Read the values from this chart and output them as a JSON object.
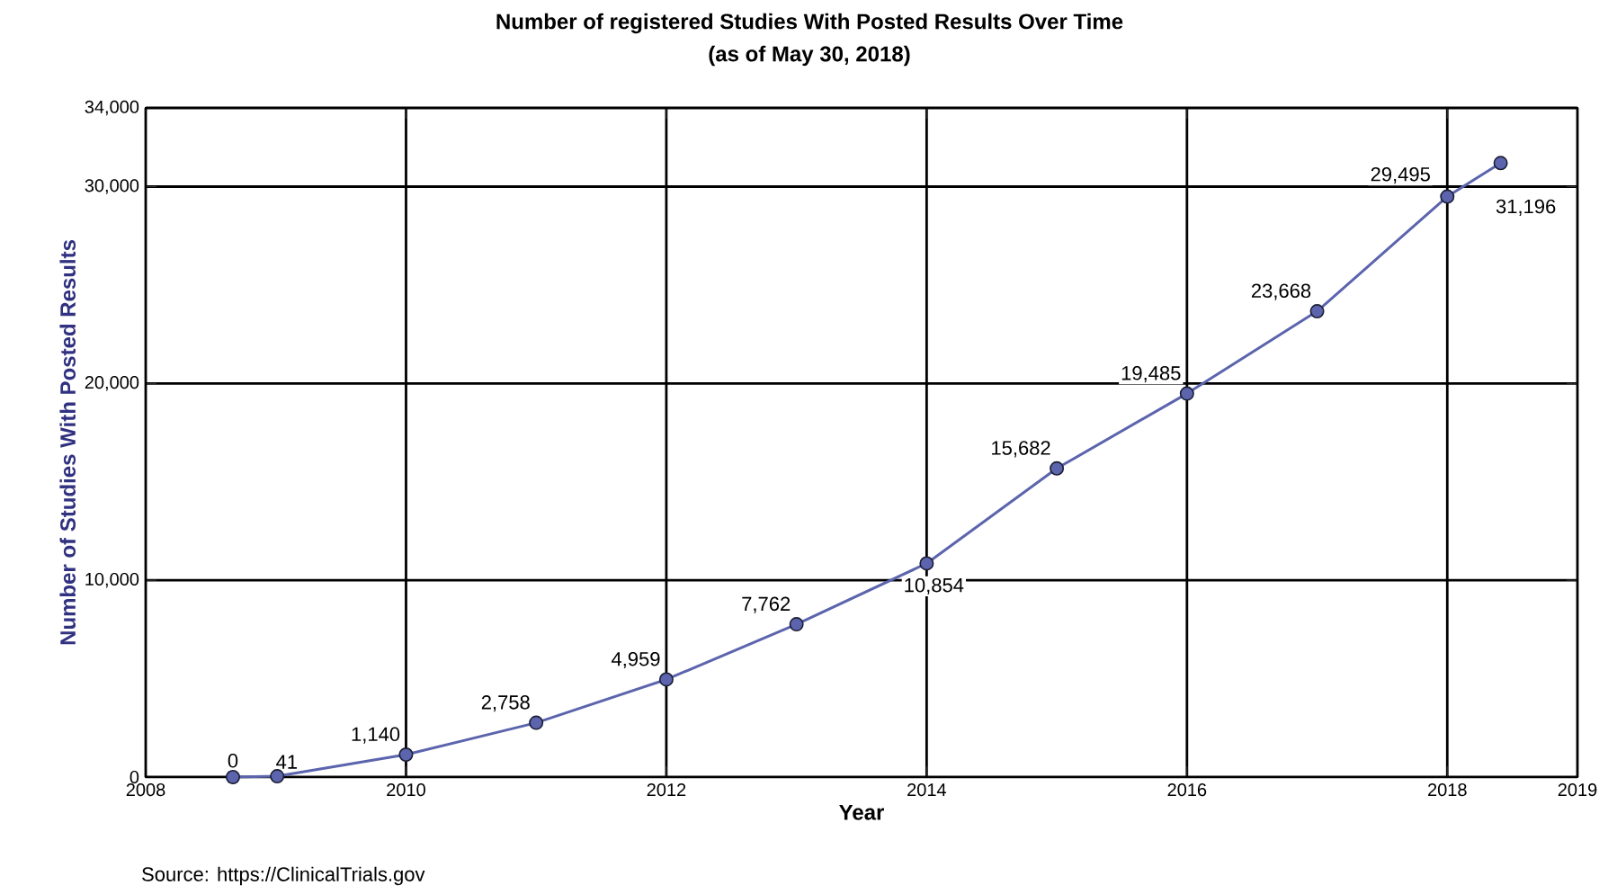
{
  "chart_data": {
    "type": "line",
    "title": "Number of registered Studies With Posted Results Over Time",
    "subtitle": "(as of May 30, 2018)",
    "xlabel": "Year",
    "ylabel": "Number of Studies With Posted Results",
    "annotations": [
      "Source: https://ClinicalTrials.gov"
    ],
    "series": [
      {
        "color": "#5b64ad",
        "x": [
          2008.67,
          2009.01,
          2010,
          2011,
          2012,
          2013,
          2014,
          2015,
          2016,
          2017,
          2018,
          2018.41
        ],
        "values": [
          0,
          41,
          1140,
          2758,
          4959,
          7762,
          10854,
          15682,
          19485,
          23668,
          29495,
          31196
        ],
        "value_labels": [
          "0",
          "41",
          "1,140",
          "2,758",
          "4,959",
          "7,762",
          "10,854",
          "15,682",
          "19,485",
          "23,668",
          "29,495",
          "31,196"
        ]
      }
    ],
    "xlim": [
      2008,
      2019
    ],
    "xticks": [
      2008,
      2010,
      2012,
      2014,
      2016,
      2018,
      2019
    ],
    "ylim": [
      0,
      34000
    ],
    "yticks": [
      0,
      {
        "value": 10000,
        "label": "10,000"
      },
      {
        "value": 20000,
        "label": "20,000"
      },
      {
        "value": 30000,
        "label": "30,000"
      },
      {
        "value": 34000,
        "label": "34,000"
      }
    ],
    "grid": true,
    "marker": "circle",
    "line_style": "solid"
  }
}
